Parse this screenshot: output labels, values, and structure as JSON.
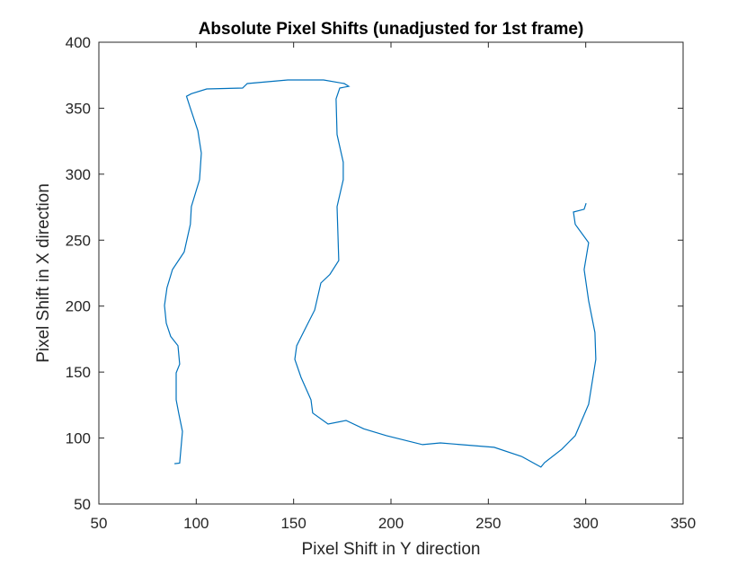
{
  "chart_data": {
    "type": "line",
    "title": "Absolute Pixel Shifts (unadjusted for 1st frame)",
    "x_label": "Pixel Shift in Y direction",
    "y_label": "Pixel Shift in X direction",
    "xlim": [
      50,
      350
    ],
    "xticks": [
      50,
      100,
      150,
      200,
      250,
      300,
      350
    ],
    "ylim": [
      50,
      400
    ],
    "yticks": [
      50,
      100,
      150,
      200,
      250,
      300,
      350,
      400
    ],
    "grid": false,
    "series": [
      {
        "color": "#0072bd",
        "x": [
          88.8,
          91.5,
          92.9,
          91,
          89.7,
          89.7,
          91.5,
          90.6,
          86.9,
          84.6,
          83.7,
          85,
          87.8,
          93.8,
          97,
          97.5,
          101.7,
          102.6,
          100.8,
          97,
          95,
          97.5,
          105.4,
          123.8,
          126.2,
          147,
          165.4,
          176,
          178.3,
          173.7,
          171.8,
          172.3,
          175.5,
          175.5,
          172.3,
          173.2,
          168.6,
          164,
          160.8,
          156.2,
          151.6,
          150.6,
          153.8,
          158.9,
          159.8,
          167.7,
          176.9,
          186,
          197.7,
          216.2,
          225.4,
          253,
          267,
          277,
          278.9,
          287.7,
          294.6,
          301.5,
          305.2,
          304.7,
          301.5,
          299.2,
          301.5,
          294.6,
          293.7,
          299.2,
          300.2
        ],
        "values": [
          80.6,
          81,
          105,
          119,
          129,
          149.4,
          156,
          170,
          177,
          187,
          200.5,
          214,
          227.7,
          241,
          262,
          275.4,
          295.8,
          316,
          333,
          350,
          359,
          361,
          364.6,
          365.3,
          368.7,
          371.4,
          371.4,
          368.7,
          366.6,
          365.3,
          357,
          330,
          309,
          295.8,
          275.4,
          234.5,
          224,
          217.5,
          197,
          183.5,
          170,
          159.6,
          146,
          129,
          119,
          110.6,
          113.3,
          107,
          101.8,
          95,
          96.3,
          93,
          86.1,
          78,
          81.4,
          91.5,
          101.8,
          125.6,
          159.6,
          180,
          204,
          227.7,
          248,
          262,
          271.3,
          273.4,
          278
        ]
      }
    ]
  }
}
